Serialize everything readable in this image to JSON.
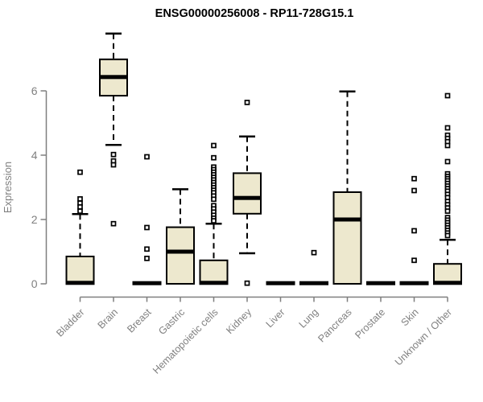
{
  "chart_data": {
    "type": "boxplot",
    "title": "ENSG00000256008 - RP11-728G15.1",
    "xlabel": "",
    "ylabel": "Expression",
    "ylim": [
      0,
      7.9
    ],
    "yticks": [
      0,
      2,
      4,
      6
    ],
    "grid": false,
    "legend": "none",
    "colors": {
      "box_fill": "#ede8ce",
      "box_stroke": "#000000",
      "median": "#000000",
      "whisker": "#000000",
      "outlier_fill": "#ffffff",
      "outlier_stroke": "#000000",
      "axis": "#7f7f7f",
      "tick_label": "#808080",
      "title_color": "#000000",
      "background": "#ffffff"
    },
    "categories": [
      {
        "label": "Bladder",
        "whisker_low": 0,
        "q1": 0,
        "median": 0.03,
        "q3": 0.85,
        "whisker_high": 2.17,
        "outliers": [
          3.47,
          2.64,
          2.51,
          2.39,
          2.26
        ]
      },
      {
        "label": "Brain",
        "whisker_low": 4.32,
        "q1": 5.85,
        "median": 6.43,
        "q3": 6.98,
        "whisker_high": 7.78,
        "outliers": [
          4.02,
          3.82,
          3.7,
          1.87
        ]
      },
      {
        "label": "Breast",
        "whisker_low": 0,
        "q1": 0,
        "median": 0.02,
        "q3": 0.04,
        "whisker_high": 0.04,
        "outliers": [
          3.95,
          1.75,
          1.08,
          0.79
        ]
      },
      {
        "label": "Gastric",
        "whisker_low": 0,
        "q1": 0,
        "median": 1.0,
        "q3": 1.76,
        "whisker_high": 2.94,
        "outliers": []
      },
      {
        "label": "Hematopoietic cells",
        "whisker_low": 0,
        "q1": 0,
        "median": 0.03,
        "q3": 0.73,
        "whisker_high": 1.87,
        "outliers": [
          4.3,
          3.92,
          3.63,
          3.55,
          3.47,
          3.39,
          3.31,
          3.23,
          3.15,
          3.07,
          2.99,
          2.91,
          2.83,
          2.73,
          2.63,
          2.43,
          2.33,
          2.23,
          2.13,
          2.04,
          1.96
        ]
      },
      {
        "label": "Kidney",
        "whisker_low": 0.95,
        "q1": 2.18,
        "median": 2.67,
        "q3": 3.44,
        "whisker_high": 4.58,
        "outliers": [
          5.64,
          0.02
        ]
      },
      {
        "label": "Liver",
        "whisker_low": 0,
        "q1": 0,
        "median": 0.02,
        "q3": 0.04,
        "whisker_high": 0.04,
        "outliers": []
      },
      {
        "label": "Lung",
        "whisker_low": 0,
        "q1": 0,
        "median": 0.02,
        "q3": 0.04,
        "whisker_high": 0.04,
        "outliers": [
          0.97
        ]
      },
      {
        "label": "Pancreas",
        "whisker_low": 0,
        "q1": 0,
        "median": 2.0,
        "q3": 2.85,
        "whisker_high": 5.98,
        "outliers": []
      },
      {
        "label": "Prostate",
        "whisker_low": 0,
        "q1": 0,
        "median": 0.02,
        "q3": 0.04,
        "whisker_high": 0.04,
        "outliers": []
      },
      {
        "label": "Skin",
        "whisker_low": 0,
        "q1": 0,
        "median": 0.02,
        "q3": 0.04,
        "whisker_high": 0.04,
        "outliers": [
          3.27,
          2.9,
          1.65,
          0.73
        ]
      },
      {
        "label": "Unknown / Other",
        "whisker_low": 0,
        "q1": 0,
        "median": 0.03,
        "q3": 0.62,
        "whisker_high": 1.37,
        "outliers": [
          5.85,
          4.85,
          4.62,
          4.52,
          4.42,
          4.3,
          3.8,
          3.42,
          3.34,
          3.27,
          3.2,
          3.12,
          3.04,
          2.96,
          2.88,
          2.78,
          2.68,
          2.56,
          2.46,
          2.36,
          2.26,
          2.06,
          1.98,
          1.9,
          1.82,
          1.74,
          1.66,
          1.58,
          1.5
        ]
      }
    ]
  }
}
